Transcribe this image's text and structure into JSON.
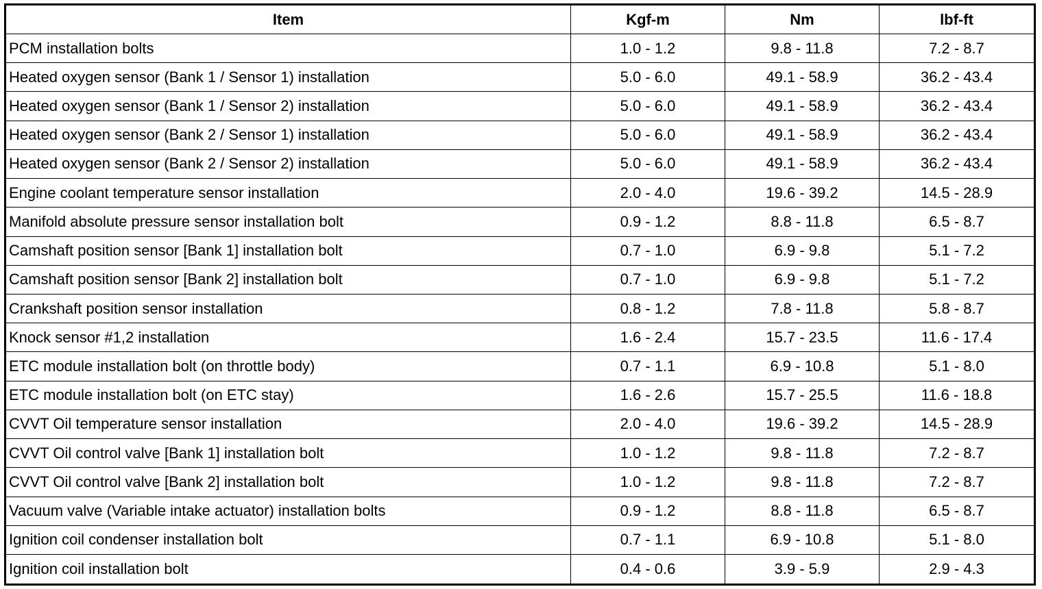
{
  "table": {
    "header": [
      "Item",
      "Kgf-m",
      "Nm",
      "lbf-ft"
    ],
    "rows": [
      [
        "PCM installation bolts",
        "1.0 - 1.2",
        "9.8 - 11.8",
        "7.2 - 8.7"
      ],
      [
        "Heated oxygen sensor (Bank 1 / Sensor 1) installation",
        "5.0 - 6.0",
        "49.1 - 58.9",
        "36.2 - 43.4"
      ],
      [
        "Heated oxygen sensor (Bank 1 / Sensor 2) installation",
        "5.0 - 6.0",
        "49.1 - 58.9",
        "36.2 - 43.4"
      ],
      [
        "Heated oxygen sensor (Bank 2 / Sensor 1) installation",
        "5.0 - 6.0",
        "49.1 - 58.9",
        "36.2 - 43.4"
      ],
      [
        "Heated oxygen sensor (Bank 2 / Sensor 2) installation",
        "5.0 - 6.0",
        "49.1 - 58.9",
        "36.2 - 43.4"
      ],
      [
        "Engine coolant temperature sensor installation",
        "2.0 - 4.0",
        "19.6 - 39.2",
        "14.5 - 28.9"
      ],
      [
        "Manifold absolute pressure sensor installation bolt",
        "0.9 - 1.2",
        "8.8 - 11.8",
        "6.5 - 8.7"
      ],
      [
        "Camshaft position sensor [Bank 1] installation bolt",
        "0.7 - 1.0",
        "6.9 - 9.8",
        "5.1 - 7.2"
      ],
      [
        "Camshaft position sensor [Bank 2] installation bolt",
        "0.7 - 1.0",
        "6.9 - 9.8",
        "5.1 - 7.2"
      ],
      [
        "Crankshaft position sensor installation",
        "0.8 - 1.2",
        "7.8 - 11.8",
        "5.8 - 8.7"
      ],
      [
        "Knock sensor #1,2 installation",
        "1.6 - 2.4",
        "15.7 - 23.5",
        "11.6 - 17.4"
      ],
      [
        "ETC module installation bolt (on throttle body)",
        "0.7 - 1.1",
        "6.9 - 10.8",
        "5.1 - 8.0"
      ],
      [
        "ETC module installation bolt (on ETC stay)",
        "1.6 - 2.6",
        "15.7 - 25.5",
        "11.6 - 18.8"
      ],
      [
        "CVVT Oil temperature sensor installation",
        "2.0 - 4.0",
        "19.6 - 39.2",
        "14.5 - 28.9"
      ],
      [
        "CVVT Oil control valve [Bank 1] installation bolt",
        "1.0 - 1.2",
        "9.8 - 11.8",
        "7.2 - 8.7"
      ],
      [
        "CVVT Oil control valve [Bank 2] installation bolt",
        "1.0 - 1.2",
        "9.8 - 11.8",
        "7.2 - 8.7"
      ],
      [
        "Vacuum valve (Variable intake actuator) installation bolts",
        "0.9 - 1.2",
        "8.8 - 11.8",
        "6.5 - 8.7"
      ],
      [
        "Ignition coil condenser installation bolt",
        "0.7 - 1.1",
        "6.9 - 10.8",
        "5.1 - 8.0"
      ],
      [
        "Ignition coil installation bolt",
        "0.4 - 0.6",
        "3.9 - 5.9",
        "2.9 - 4.3"
      ]
    ]
  }
}
